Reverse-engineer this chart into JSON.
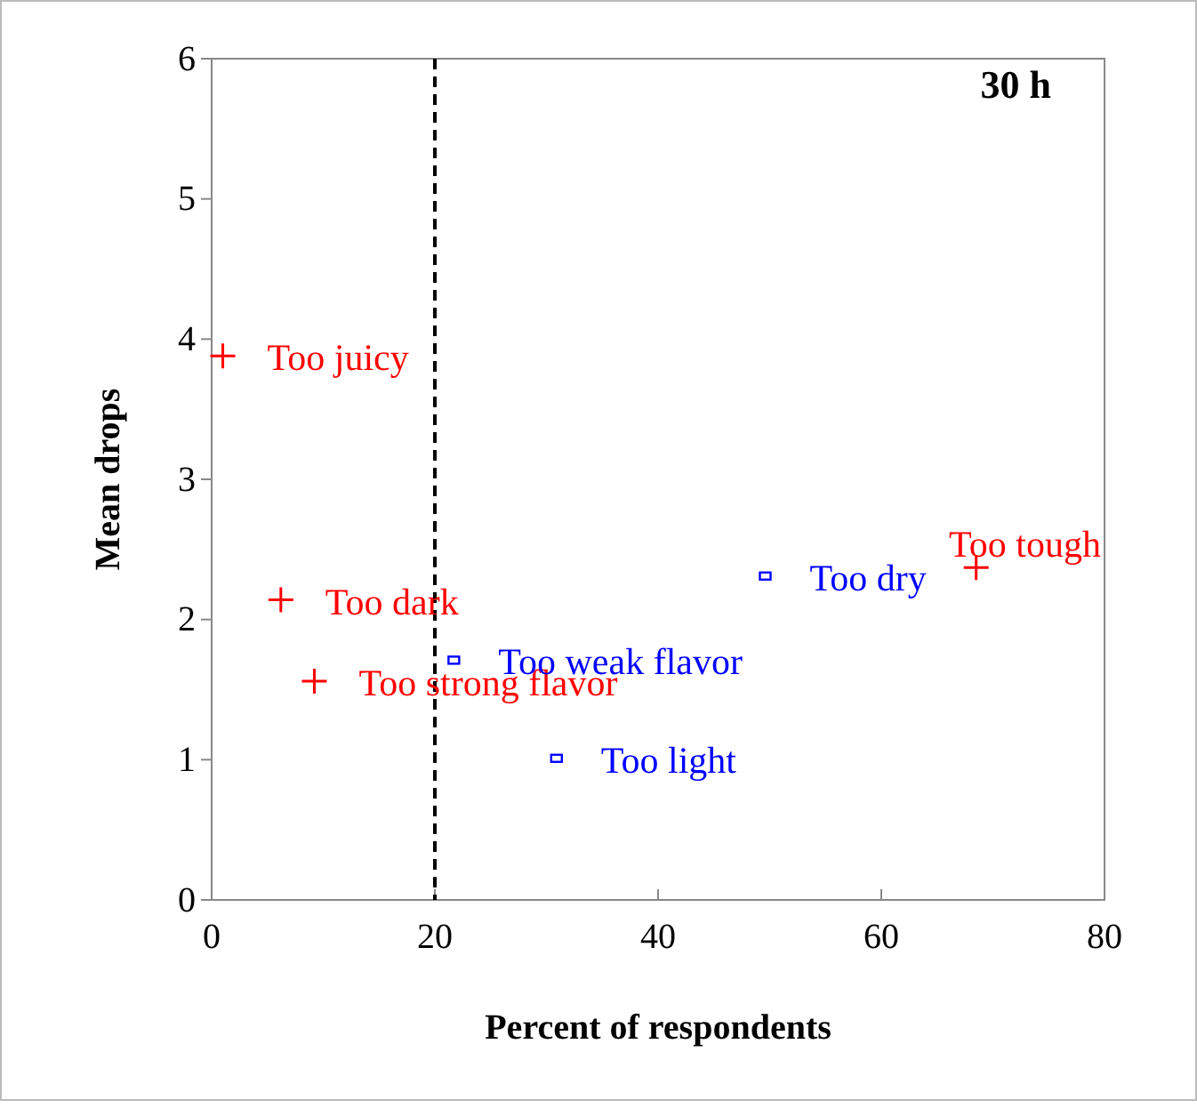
{
  "chart_data": {
    "type": "scatter",
    "xlabel": "Percent of respondents",
    "ylabel": "Mean drops",
    "xlim": [
      0,
      80
    ],
    "xticks": [
      0,
      20,
      40,
      60,
      80
    ],
    "ylim": [
      0,
      6
    ],
    "yticks": [
      0,
      1,
      2,
      3,
      4,
      5,
      6
    ],
    "grid": false,
    "series": [
      {
        "color": "#ff0000",
        "marker": "cross",
        "x": [
          1,
          6.2,
          9.2,
          68.5
        ],
        "values": [
          3.88,
          2.14,
          1.56,
          2.37
        ]
      },
      {
        "color": "#0000ff",
        "marker": "square",
        "x": [
          49.6,
          21.7,
          30.9
        ],
        "values": [
          2.31,
          1.71,
          1.01
        ]
      }
    ],
    "ref_lines": [
      {
        "axis": "x",
        "value": 20,
        "color": "#000000",
        "line_style": "dashed"
      }
    ],
    "annotations": [
      "30 h",
      {
        "text": "Too juicy",
        "x": 1,
        "y": 3.88
      },
      {
        "text": "Too dark",
        "x": 6.2,
        "y": 2.14
      },
      {
        "text": "Too strong flavor",
        "x": 9.2,
        "y": 1.56
      },
      {
        "text": "Too tough",
        "x": 68.5,
        "y": 2.37
      },
      {
        "text": "Too dry",
        "x": 49.6,
        "y": 2.31
      },
      {
        "text": "Too weak flavor",
        "x": 21.7,
        "y": 1.71
      },
      {
        "text": "Too light",
        "x": 30.9,
        "y": 1.01
      }
    ]
  }
}
